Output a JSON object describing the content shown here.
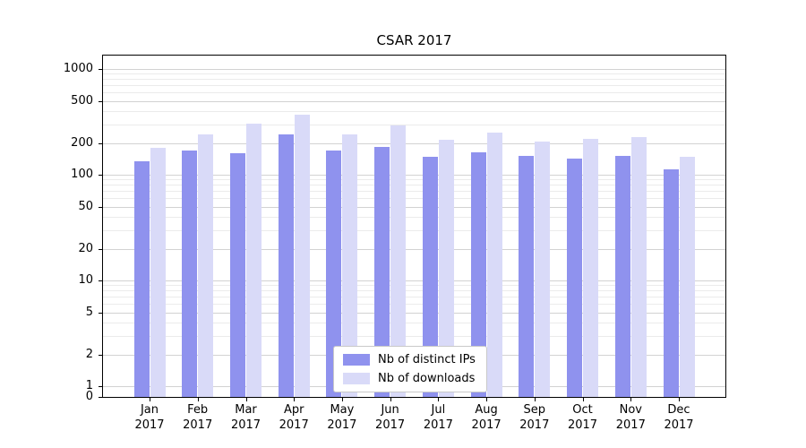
{
  "title": "CSAR 2017",
  "chart_data": {
    "type": "bar",
    "title": "CSAR 2017",
    "categories": [
      "Jan",
      "Feb",
      "Mar",
      "Apr",
      "May",
      "Jun",
      "Jul",
      "Aug",
      "Sep",
      "Oct",
      "Nov",
      "Dec"
    ],
    "year": "2017",
    "series": [
      {
        "name": "Nb of distinct IPs",
        "color": "#8f92ee",
        "values": [
          135,
          168,
          160,
          240,
          170,
          185,
          148,
          162,
          150,
          142,
          152,
          112
        ]
      },
      {
        "name": "Nb of downloads",
        "color": "#d9daf8",
        "values": [
          180,
          240,
          305,
          370,
          240,
          290,
          215,
          250,
          205,
          220,
          225,
          148
        ]
      }
    ],
    "xlabel": "",
    "ylabel": "",
    "yscale": "symlog",
    "yticks": [
      0,
      1,
      2,
      5,
      10,
      20,
      50,
      100,
      200,
      500,
      1000
    ],
    "ylim": [
      0,
      1400
    ],
    "grid": true,
    "legend_position": "lower-center-inside"
  }
}
